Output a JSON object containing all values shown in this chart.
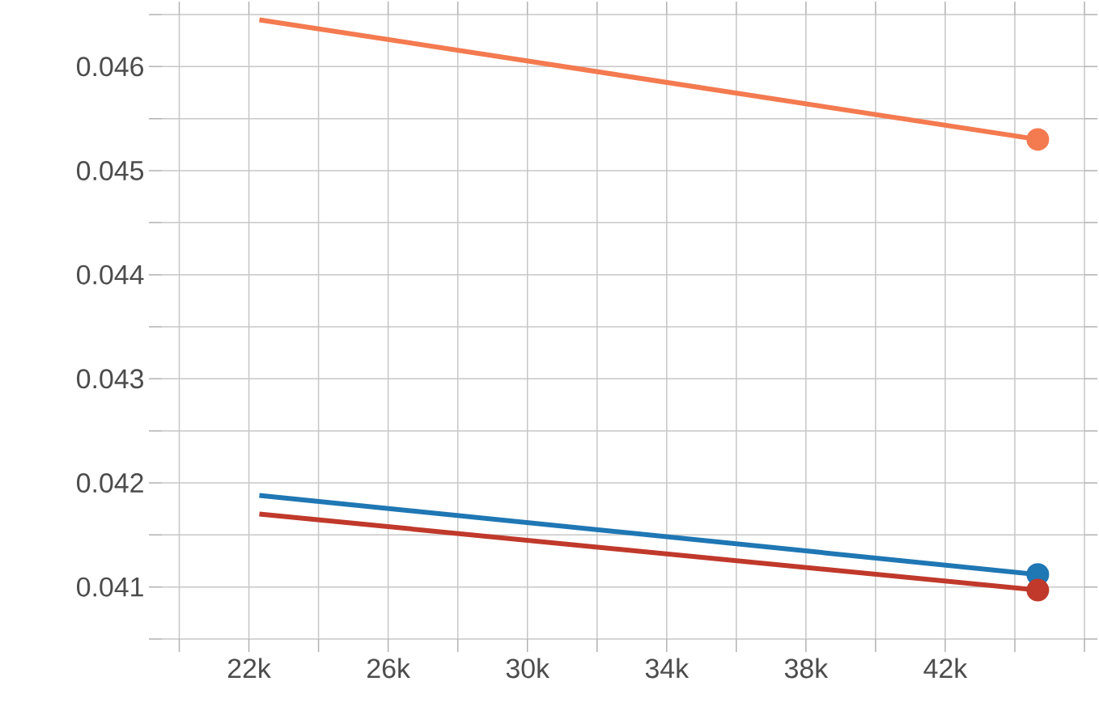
{
  "chart_data": {
    "type": "line",
    "x": [
      22300,
      44660
    ],
    "series": [
      {
        "color": "#f47a50",
        "values": [
          0.04645,
          0.0453
        ]
      },
      {
        "color": "#1f77b4",
        "values": [
          0.04188,
          0.04112
        ]
      },
      {
        "color": "#c0392b",
        "values": [
          0.0417,
          0.04097
        ]
      }
    ],
    "xlim": [
      19500,
      46000
    ],
    "ylim": [
      0.0405,
      0.0465
    ],
    "xticks": [
      {
        "value": 20000,
        "label": null
      },
      {
        "value": 22000,
        "label": "22k"
      },
      {
        "value": 24000,
        "label": null
      },
      {
        "value": 26000,
        "label": "26k"
      },
      {
        "value": 28000,
        "label": null
      },
      {
        "value": 30000,
        "label": "30k"
      },
      {
        "value": 32000,
        "label": null
      },
      {
        "value": 34000,
        "label": "34k"
      },
      {
        "value": 36000,
        "label": null
      },
      {
        "value": 38000,
        "label": "38k"
      },
      {
        "value": 40000,
        "label": null
      },
      {
        "value": 42000,
        "label": "42k"
      },
      {
        "value": 44000,
        "label": null
      },
      {
        "value": 46000,
        "label": null
      }
    ],
    "yticks": [
      {
        "value": 0.0405,
        "label": null
      },
      0.041,
      {
        "value": 0.0415,
        "label": null
      },
      0.042,
      {
        "value": 0.0425,
        "label": null
      },
      0.043,
      {
        "value": 0.0435,
        "label": null
      },
      0.044,
      {
        "value": 0.0445,
        "label": null
      },
      0.045,
      {
        "value": 0.0455,
        "label": null
      },
      0.046,
      {
        "value": 0.0465,
        "label": null
      }
    ],
    "grid": true,
    "marker": "circle",
    "line_style": "solid"
  }
}
